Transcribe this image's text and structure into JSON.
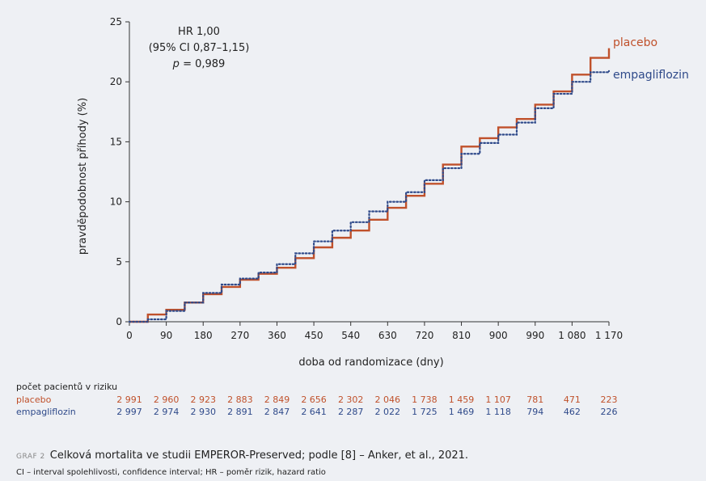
{
  "chart_data": {
    "type": "line",
    "xlabel": "doba od randomizace (dny)",
    "ylabel": "pravděpodobnost příhody (%)",
    "xlim": [
      0,
      1170
    ],
    "ylim": [
      0,
      25
    ],
    "x_ticks": [
      0,
      90,
      180,
      270,
      360,
      450,
      540,
      630,
      720,
      810,
      900,
      990,
      1080,
      1170
    ],
    "x_tick_labels": [
      "0",
      "90",
      "180",
      "270",
      "360",
      "450",
      "540",
      "630",
      "720",
      "810",
      "900",
      "990",
      "1 080",
      "1 170"
    ],
    "y_ticks": [
      0,
      5,
      10,
      15,
      20,
      25
    ],
    "y_tick_labels": [
      "0",
      "5",
      "10",
      "15",
      "20",
      "25"
    ],
    "annotation": {
      "line1": "HR 1,00",
      "line2": "(95% CI 0,87–1,15)",
      "line3_p": "p",
      "line3_rest": " = 0,989"
    },
    "series": [
      {
        "name": "placebo",
        "color": "#c0512b",
        "style": "solid-step",
        "x": [
          0,
          45,
          90,
          135,
          180,
          225,
          270,
          315,
          360,
          405,
          450,
          495,
          540,
          585,
          630,
          675,
          720,
          765,
          810,
          855,
          900,
          945,
          990,
          1035,
          1080,
          1125,
          1170
        ],
        "y": [
          0,
          0.6,
          1.0,
          1.6,
          2.3,
          2.9,
          3.5,
          4.0,
          4.5,
          5.3,
          6.2,
          7.0,
          7.6,
          8.5,
          9.5,
          10.5,
          11.5,
          13.1,
          14.6,
          15.3,
          16.2,
          16.9,
          18.1,
          19.2,
          20.6,
          22.0,
          22.8
        ]
      },
      {
        "name": "empagliflozin",
        "color": "#2f4a8a",
        "style": "dotted-step",
        "x": [
          0,
          45,
          90,
          135,
          180,
          225,
          270,
          315,
          360,
          405,
          450,
          495,
          540,
          585,
          630,
          675,
          720,
          765,
          810,
          855,
          900,
          945,
          990,
          1035,
          1080,
          1125,
          1170
        ],
        "y": [
          0,
          0.2,
          0.9,
          1.6,
          2.4,
          3.1,
          3.6,
          4.1,
          4.8,
          5.7,
          6.7,
          7.6,
          8.3,
          9.2,
          10.0,
          10.8,
          11.8,
          12.8,
          14.0,
          14.9,
          15.6,
          16.6,
          17.8,
          19.0,
          20.0,
          20.8,
          20.9
        ]
      }
    ]
  },
  "risk_table": {
    "title": "počet pacientů v riziku",
    "rows": [
      {
        "name": "placebo",
        "values": [
          "2 991",
          "2 960",
          "2 923",
          "2 883",
          "2 849",
          "2 656",
          "2 302",
          "2 046",
          "1 738",
          "1 459",
          "1 107",
          "781",
          "471",
          "223"
        ]
      },
      {
        "name": "empagliflozin",
        "values": [
          "2 997",
          "2 974",
          "2 930",
          "2 891",
          "2 847",
          "2 641",
          "2 287",
          "2 022",
          "1 725",
          "1 469",
          "1 118",
          "794",
          "462",
          "226"
        ]
      }
    ]
  },
  "caption": {
    "label": "GRAF 2",
    "text": "Celková mortalita ve studii EMPEROR-Preserved; podle [8] – Anker, et al., 2021."
  },
  "footnote": "CI – interval spolehlivosti, confidence interval; HR – poměr rizik, hazard ratio"
}
